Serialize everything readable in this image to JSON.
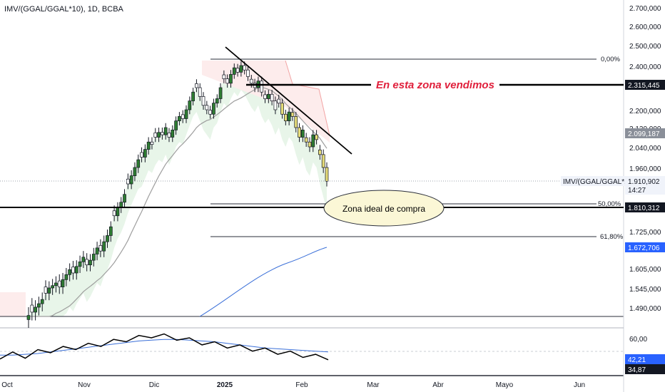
{
  "title": "IMV/(GGAL/GGAL*10), 1D, BCBA",
  "colors": {
    "up": "#2e7d32",
    "down": "#ffffff",
    "yellow": "#e6dc7a",
    "ma": "#9e9e9e",
    "blue": "#3a6fd8",
    "annotation": "#e0203c",
    "green_band": "#e8f5e9",
    "red_band": "#fdecec",
    "red_line": "#f2a3a3"
  },
  "annotations": {
    "sold_zone": "En esta zona vendimos",
    "buy_zone": "Zona ideal de compra"
  },
  "fib": {
    "f0": "0,00%",
    "f50": "50,00%",
    "f618": "61,80%"
  },
  "badges": {
    "sold": "2.315,445",
    "ma": "2.099,187",
    "symbol": "IMV/(GGAL/GGAL*10)",
    "price": "1.910,902",
    "countdown": "14:27",
    "buy": "1.810,312",
    "ma200": "1.672,706",
    "osc_ma": "42,21",
    "osc": "34,87"
  },
  "chart_data": [
    {
      "type": "candlestick",
      "title": "IMV/(GGAL/GGAL*10), 1D, BCBA",
      "x_ticks": [
        "Oct",
        "Nov",
        "Dic",
        "2025",
        "Feb",
        "Mar",
        "Abr",
        "Mayo",
        "Jun"
      ],
      "y_ticks": [
        "2.700,000",
        "2.600,000",
        "2.500,000",
        "2.400,000",
        "2.200,000",
        "2.120,000",
        "2.040,000",
        "1.960,000",
        "1.725,000",
        "1.605,000",
        "1.545,000",
        "1.490,000"
      ],
      "last_price": 1910.902,
      "levels": {
        "sold_zone": 2315.445,
        "buy_zone": 1810.312,
        "fib_0": 2433,
        "fib_50": 1816,
        "fib_618": 1706
      },
      "ma_last": 2099.187,
      "ma200_last": 1672.706
    },
    {
      "type": "line",
      "title": "",
      "y_ticks": [
        "60,00"
      ],
      "series": [
        {
          "values": [
            36,
            39,
            37,
            42,
            44,
            46,
            48,
            50,
            52,
            55,
            58,
            60,
            63,
            62,
            60,
            57,
            54,
            52,
            50,
            48,
            46,
            44,
            42,
            40,
            38,
            36,
            35
          ]
        },
        {
          "values": [
            38,
            38,
            39,
            40,
            42,
            44,
            46,
            48,
            50,
            52,
            54,
            56,
            57,
            58,
            58,
            57,
            56,
            55,
            53,
            51,
            49,
            47,
            46,
            45,
            44,
            43,
            42
          ]
        }
      ],
      "last_values": [
        34.87,
        42.21
      ]
    }
  ]
}
